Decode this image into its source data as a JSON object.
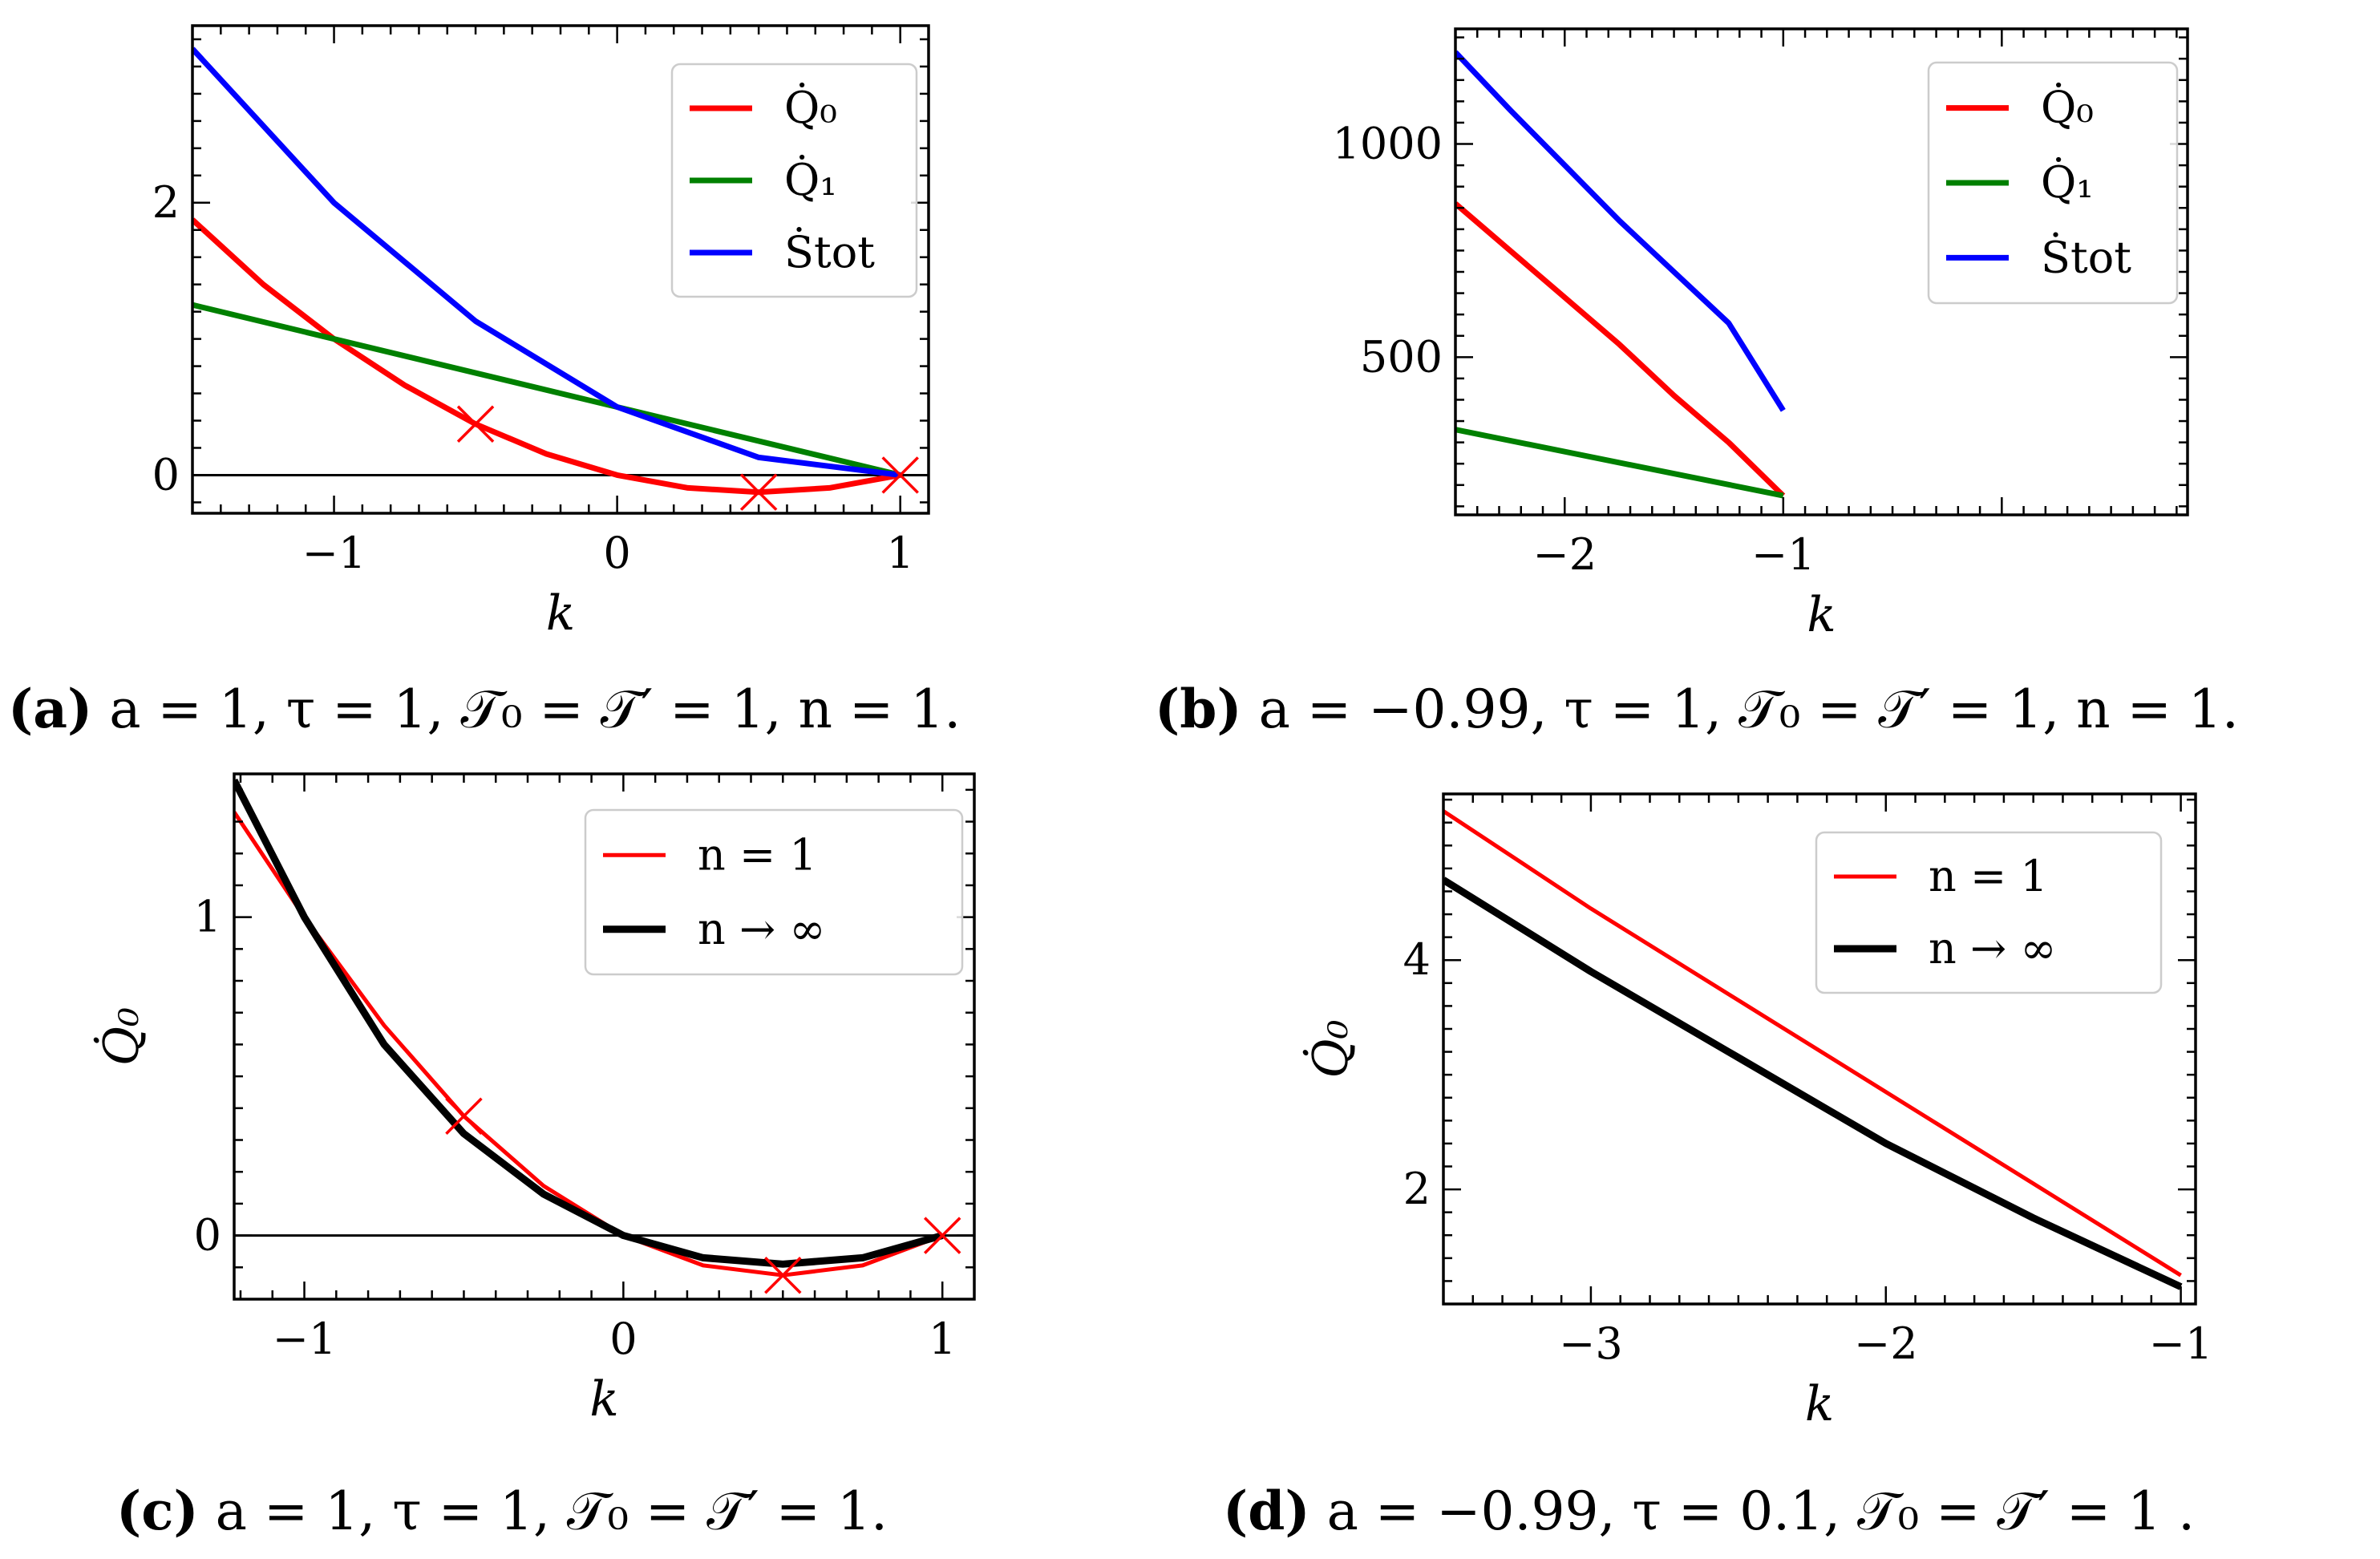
{
  "chart_data": [
    {
      "id": "a",
      "type": "line",
      "caption": {
        "label": "(a)",
        "text": "a = 1, τ = 1, 𝒯₀ = 𝒯′ = 1, n = 1."
      },
      "xlabel": "k",
      "ylabel": "",
      "xlim": [
        -1.5,
        1.1
      ],
      "ylim": [
        -0.28,
        3.3
      ],
      "xticks": [
        -1,
        0,
        1
      ],
      "xtick_labels": [
        "−1",
        "0",
        "1"
      ],
      "yticks": [
        0,
        2
      ],
      "ytick_labels": [
        "0",
        "2"
      ],
      "hline": 0,
      "legend": {
        "position": "top-right"
      },
      "series": [
        {
          "name": "Q̇₀",
          "color": "#ff0000",
          "x": [
            -1.5,
            -1.25,
            -1.0,
            -0.75,
            -0.5,
            -0.25,
            0.0,
            0.25,
            0.5,
            0.75,
            1.0
          ],
          "y": [
            1.875,
            1.4,
            1.0,
            0.66,
            0.375,
            0.156,
            0.0,
            -0.094,
            -0.125,
            -0.094,
            0.0
          ]
        },
        {
          "name": "Q̇₁",
          "color": "#008000",
          "x": [
            -1.5,
            1.0
          ],
          "y": [
            1.25,
            0.0
          ]
        },
        {
          "name": "Ṡtot",
          "color": "#0000ff",
          "x": [
            -1.5,
            -1.0,
            -0.5,
            0.0,
            0.5,
            1.0
          ],
          "y": [
            3.13,
            2.0,
            1.13,
            0.5,
            0.13,
            0.0
          ]
        }
      ],
      "markers": {
        "color": "#ff0000",
        "symbol": "×",
        "x": [
          -0.5,
          0.5,
          1.0
        ],
        "y": [
          0.375,
          -0.125,
          0.0
        ]
      }
    },
    {
      "id": "b",
      "type": "line",
      "caption": {
        "label": "(b)",
        "text": "a = −0.99, τ = 1, 𝒯₀ = 𝒯′ = 1, n = 1."
      },
      "xlabel": "k",
      "ylabel": "",
      "xlim": [
        -2.5,
        0.85
      ],
      "ylim": [
        130,
        1270
      ],
      "xticks": [
        -2,
        -1
      ],
      "xtick_labels": [
        "−2",
        "−1"
      ],
      "yticks": [
        500,
        1000
      ],
      "ytick_labels": [
        "500",
        "1000"
      ],
      "legend": {
        "position": "top-right"
      },
      "series": [
        {
          "name": "Q̇₀",
          "color": "#ff0000",
          "x": [
            -2.5,
            -2.25,
            -2.0,
            -1.75,
            -1.5,
            -1.25,
            -1.0
          ],
          "y": [
            860,
            750,
            640,
            530,
            410,
            300,
            175
          ]
        },
        {
          "name": "Q̇₁",
          "color": "#008000",
          "x": [
            -2.5,
            -1.0
          ],
          "y": [
            330,
            175
          ]
        },
        {
          "name": "Ṡtot",
          "color": "#0000ff",
          "x": [
            -2.5,
            -2.25,
            -2.0,
            -1.75,
            -1.5,
            -1.25,
            -1.0
          ],
          "y": [
            1215,
            1080,
            950,
            820,
            700,
            580,
            375
          ]
        }
      ],
      "markers": null
    },
    {
      "id": "c",
      "type": "line",
      "caption": {
        "label": "(c)",
        "text": "a = 1, τ = 1, 𝒯₀ = 𝒯′ = 1."
      },
      "xlabel": "k",
      "ylabel": "Q̇₀",
      "xlim": [
        -1.22,
        1.1
      ],
      "ylim": [
        -0.2,
        1.45
      ],
      "xticks": [
        -1,
        0,
        1
      ],
      "xtick_labels": [
        "−1",
        "0",
        "1"
      ],
      "yticks": [
        0,
        1
      ],
      "ytick_labels": [
        "0",
        "1"
      ],
      "hline": 0,
      "legend": {
        "position": "top-right"
      },
      "series": [
        {
          "name": "n = 1",
          "color": "#ff0000",
          "x": [
            -1.22,
            -1.0,
            -0.75,
            -0.5,
            -0.25,
            0.0,
            0.25,
            0.5,
            0.75,
            1.0
          ],
          "y": [
            1.33,
            1.0,
            0.66,
            0.375,
            0.156,
            0.0,
            -0.094,
            -0.125,
            -0.094,
            0.0
          ]
        },
        {
          "name": "n → ∞",
          "color": "#000000",
          "x": [
            -1.22,
            -1.0,
            -0.75,
            -0.5,
            -0.25,
            0.0,
            0.25,
            0.5,
            0.75,
            1.0
          ],
          "y": [
            1.43,
            1.0,
            0.6,
            0.32,
            0.13,
            0.0,
            -0.07,
            -0.09,
            -0.07,
            0.0
          ]
        }
      ],
      "markers": {
        "color": "#ff0000",
        "symbol": "×",
        "x": [
          -0.5,
          0.5,
          1.0
        ],
        "y": [
          0.375,
          -0.125,
          0.0
        ]
      }
    },
    {
      "id": "d",
      "type": "line",
      "caption": {
        "label": "(d)",
        "text": "a = −0.99, τ = 0.1, 𝒯₀ = 𝒯′ = 1 ."
      },
      "xlabel": "k",
      "ylabel": "Q̇₀",
      "xlim": [
        -3.5,
        -0.95
      ],
      "ylim": [
        1.0,
        5.45
      ],
      "xticks": [
        -3,
        -2,
        -1
      ],
      "xtick_labels": [
        "−3",
        "−2",
        "−1"
      ],
      "yticks": [
        2,
        4
      ],
      "ytick_labels": [
        "2",
        "4"
      ],
      "legend": {
        "position": "top-right"
      },
      "series": [
        {
          "name": "n = 1",
          "color": "#ff0000",
          "x": [
            -3.5,
            -3.0,
            -2.5,
            -2.0,
            -1.5,
            -1.0
          ],
          "y": [
            5.3,
            4.45,
            3.65,
            2.85,
            2.05,
            1.25
          ]
        },
        {
          "name": "n → ∞",
          "color": "#000000",
          "x": [
            -3.5,
            -3.0,
            -2.5,
            -2.0,
            -1.5,
            -1.0
          ],
          "y": [
            4.7,
            3.9,
            3.15,
            2.4,
            1.75,
            1.15
          ]
        }
      ],
      "markers": null
    }
  ]
}
